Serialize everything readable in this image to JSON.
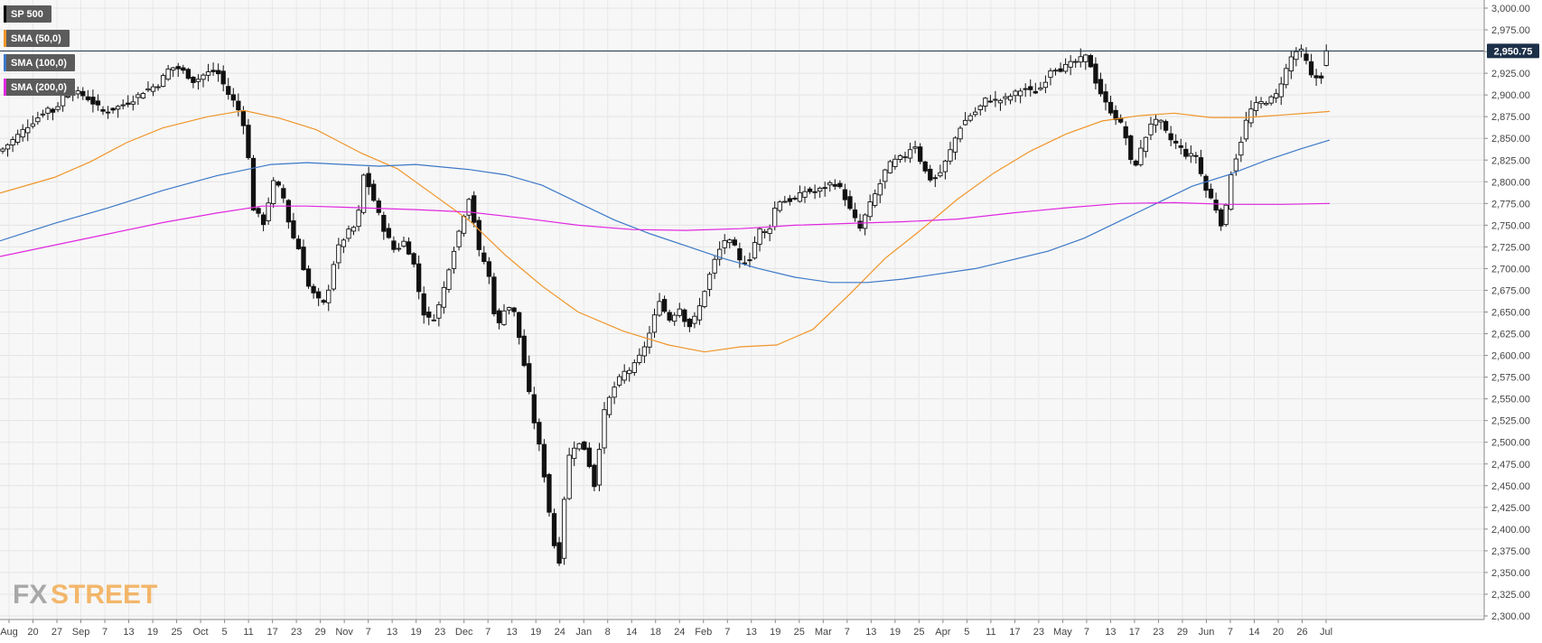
{
  "legend": [
    {
      "label": "SP 500",
      "color": "#000000"
    },
    {
      "label": "SMA (50,0)",
      "color": "#f0952a"
    },
    {
      "label": "SMA (100,0)",
      "color": "#3c78c8"
    },
    {
      "label": "SMA (200,0)",
      "color": "#e028e0"
    }
  ],
  "watermark": {
    "part1": "FX",
    "part2": "STREET"
  },
  "chart_data": {
    "type": "candlestick",
    "title": "",
    "ylim": [
      2300,
      3000
    ],
    "y_ticks": [
      "2,300.00",
      "2,325.00",
      "2,350.00",
      "2,375.00",
      "2,400.00",
      "2,425.00",
      "2,450.00",
      "2,475.00",
      "2,500.00",
      "2,525.00",
      "2,550.00",
      "2,575.00",
      "2,600.00",
      "2,625.00",
      "2,650.00",
      "2,675.00",
      "2,700.00",
      "2,725.00",
      "2,750.00",
      "2,775.00",
      "2,800.00",
      "2,825.00",
      "2,850.00",
      "2,875.00",
      "2,900.00",
      "2,925.00",
      "2,950.00",
      "2,975.00",
      "3,000.00"
    ],
    "x_ticks": [
      "Aug",
      "20",
      "27",
      "Sep",
      "7",
      "13",
      "19",
      "25",
      "Oct",
      "5",
      "11",
      "17",
      "23",
      "29",
      "Nov",
      "7",
      "13",
      "19",
      "23",
      "Dec",
      "7",
      "13",
      "19",
      "24",
      "Jan",
      "8",
      "14",
      "18",
      "24",
      "Feb",
      "7",
      "13",
      "19",
      "25",
      "Mar",
      "7",
      "13",
      "19",
      "25",
      "Apr",
      "5",
      "11",
      "17",
      "23",
      "May",
      "7",
      "13",
      "17",
      "23",
      "29",
      "Jun",
      "7",
      "14",
      "20",
      "26",
      "Jul"
    ],
    "last_price": {
      "label": "2,950.75",
      "value": 2950.75
    },
    "price_path": [
      [
        0,
        2835
      ],
      [
        14,
        2848
      ],
      [
        28,
        2862
      ],
      [
        40,
        2872
      ],
      [
        52,
        2885
      ],
      [
        60,
        2880
      ],
      [
        70,
        2900
      ],
      [
        84,
        2903
      ],
      [
        95,
        2898
      ],
      [
        115,
        2880
      ],
      [
        130,
        2886
      ],
      [
        145,
        2893
      ],
      [
        160,
        2905
      ],
      [
        175,
        2912
      ],
      [
        188,
        2932
      ],
      [
        200,
        2930
      ],
      [
        215,
        2915
      ],
      [
        228,
        2925
      ],
      [
        240,
        2928
      ],
      [
        252,
        2902
      ],
      [
        262,
        2888
      ],
      [
        272,
        2860
      ],
      [
        280,
        2770
      ],
      [
        292,
        2752
      ],
      [
        302,
        2800
      ],
      [
        312,
        2790
      ],
      [
        322,
        2742
      ],
      [
        332,
        2720
      ],
      [
        340,
        2682
      ],
      [
        350,
        2666
      ],
      [
        360,
        2658
      ],
      [
        372,
        2720
      ],
      [
        385,
        2742
      ],
      [
        395,
        2750
      ],
      [
        403,
        2810
      ],
      [
        414,
        2778
      ],
      [
        425,
        2745
      ],
      [
        437,
        2720
      ],
      [
        448,
        2732
      ],
      [
        458,
        2705
      ],
      [
        468,
        2650
      ],
      [
        478,
        2638
      ],
      [
        488,
        2663
      ],
      [
        498,
        2706
      ],
      [
        510,
        2750
      ],
      [
        520,
        2785
      ],
      [
        530,
        2720
      ],
      [
        540,
        2700
      ],
      [
        550,
        2628
      ],
      [
        560,
        2660
      ],
      [
        570,
        2648
      ],
      [
        580,
        2590
      ],
      [
        590,
        2530
      ],
      [
        600,
        2480
      ],
      [
        608,
        2420
      ],
      [
        618,
        2350
      ],
      [
        628,
        2480
      ],
      [
        638,
        2500
      ],
      [
        648,
        2492
      ],
      [
        658,
        2450
      ],
      [
        668,
        2532
      ],
      [
        678,
        2560
      ],
      [
        690,
        2580
      ],
      [
        700,
        2585
      ],
      [
        710,
        2602
      ],
      [
        720,
        2628
      ],
      [
        730,
        2665
      ],
      [
        740,
        2640
      ],
      [
        752,
        2655
      ],
      [
        762,
        2632
      ],
      [
        772,
        2648
      ],
      [
        782,
        2682
      ],
      [
        792,
        2712
      ],
      [
        802,
        2733
      ],
      [
        812,
        2728
      ],
      [
        820,
        2705
      ],
      [
        830,
        2712
      ],
      [
        840,
        2745
      ],
      [
        850,
        2740
      ],
      [
        860,
        2778
      ],
      [
        870,
        2778
      ],
      [
        880,
        2780
      ],
      [
        892,
        2790
      ],
      [
        902,
        2788
      ],
      [
        912,
        2793
      ],
      [
        922,
        2800
      ],
      [
        932,
        2790
      ],
      [
        942,
        2765
      ],
      [
        952,
        2746
      ],
      [
        962,
        2772
      ],
      [
        972,
        2792
      ],
      [
        982,
        2818
      ],
      [
        992,
        2825
      ],
      [
        1002,
        2830
      ],
      [
        1012,
        2845
      ],
      [
        1022,
        2815
      ],
      [
        1032,
        2800
      ],
      [
        1042,
        2812
      ],
      [
        1052,
        2836
      ],
      [
        1062,
        2862
      ],
      [
        1072,
        2875
      ],
      [
        1082,
        2882
      ],
      [
        1092,
        2896
      ],
      [
        1104,
        2893
      ],
      [
        1114,
        2896
      ],
      [
        1124,
        2902
      ],
      [
        1134,
        2908
      ],
      [
        1144,
        2902
      ],
      [
        1154,
        2910
      ],
      [
        1164,
        2932
      ],
      [
        1174,
        2930
      ],
      [
        1184,
        2935
      ],
      [
        1194,
        2940
      ],
      [
        1204,
        2945
      ],
      [
        1214,
        2912
      ],
      [
        1224,
        2890
      ],
      [
        1234,
        2875
      ],
      [
        1244,
        2862
      ],
      [
        1254,
        2812
      ],
      [
        1264,
        2840
      ],
      [
        1274,
        2868
      ],
      [
        1284,
        2870
      ],
      [
        1294,
        2850
      ],
      [
        1304,
        2842
      ],
      [
        1314,
        2830
      ],
      [
        1324,
        2830
      ],
      [
        1334,
        2792
      ],
      [
        1344,
        2775
      ],
      [
        1354,
        2745
      ],
      [
        1362,
        2808
      ],
      [
        1372,
        2840
      ],
      [
        1382,
        2880
      ],
      [
        1392,
        2890
      ],
      [
        1402,
        2893
      ],
      [
        1412,
        2898
      ],
      [
        1422,
        2925
      ],
      [
        1432,
        2950
      ],
      [
        1442,
        2950
      ],
      [
        1452,
        2920
      ],
      [
        1462,
        2920
      ],
      [
        1472,
        2950.75
      ]
    ],
    "series": [
      {
        "name": "SMA (50,0)",
        "color": "#f0952a",
        "points": [
          [
            0,
            2787
          ],
          [
            60,
            2805
          ],
          [
            100,
            2823
          ],
          [
            140,
            2845
          ],
          [
            180,
            2862
          ],
          [
            230,
            2875
          ],
          [
            270,
            2882
          ],
          [
            310,
            2873
          ],
          [
            350,
            2860
          ],
          [
            400,
            2833
          ],
          [
            440,
            2815
          ],
          [
            480,
            2785
          ],
          [
            520,
            2755
          ],
          [
            560,
            2715
          ],
          [
            600,
            2680
          ],
          [
            640,
            2650
          ],
          [
            690,
            2628
          ],
          [
            740,
            2612
          ],
          [
            780,
            2604
          ],
          [
            820,
            2610
          ],
          [
            860,
            2612
          ],
          [
            900,
            2630
          ],
          [
            940,
            2670
          ],
          [
            980,
            2712
          ],
          [
            1020,
            2745
          ],
          [
            1060,
            2780
          ],
          [
            1100,
            2810
          ],
          [
            1140,
            2835
          ],
          [
            1180,
            2855
          ],
          [
            1220,
            2870
          ],
          [
            1260,
            2876
          ],
          [
            1300,
            2879
          ],
          [
            1340,
            2874
          ],
          [
            1380,
            2874
          ],
          [
            1420,
            2877
          ],
          [
            1472,
            2881
          ]
        ]
      },
      {
        "name": "SMA (100,0)",
        "color": "#3c78c8",
        "points": [
          [
            0,
            2732
          ],
          [
            60,
            2752
          ],
          [
            120,
            2770
          ],
          [
            180,
            2790
          ],
          [
            240,
            2807
          ],
          [
            300,
            2820
          ],
          [
            340,
            2822
          ],
          [
            380,
            2820
          ],
          [
            420,
            2818
          ],
          [
            460,
            2820
          ],
          [
            520,
            2814
          ],
          [
            560,
            2808
          ],
          [
            600,
            2796
          ],
          [
            640,
            2776
          ],
          [
            680,
            2756
          ],
          [
            720,
            2740
          ],
          [
            760,
            2726
          ],
          [
            800,
            2712
          ],
          [
            840,
            2700
          ],
          [
            880,
            2690
          ],
          [
            920,
            2684
          ],
          [
            960,
            2684
          ],
          [
            1000,
            2688
          ],
          [
            1040,
            2694
          ],
          [
            1080,
            2700
          ],
          [
            1120,
            2710
          ],
          [
            1160,
            2720
          ],
          [
            1200,
            2735
          ],
          [
            1240,
            2755
          ],
          [
            1280,
            2775
          ],
          [
            1320,
            2795
          ],
          [
            1360,
            2808
          ],
          [
            1400,
            2824
          ],
          [
            1440,
            2838
          ],
          [
            1472,
            2848
          ]
        ]
      },
      {
        "name": "SMA (200,0)",
        "color": "#e028e0",
        "points": [
          [
            0,
            2714
          ],
          [
            60,
            2727
          ],
          [
            120,
            2740
          ],
          [
            180,
            2753
          ],
          [
            240,
            2764
          ],
          [
            290,
            2772
          ],
          [
            340,
            2772
          ],
          [
            400,
            2770
          ],
          [
            460,
            2768
          ],
          [
            520,
            2765
          ],
          [
            580,
            2758
          ],
          [
            640,
            2750
          ],
          [
            700,
            2745
          ],
          [
            760,
            2744
          ],
          [
            820,
            2746
          ],
          [
            880,
            2750
          ],
          [
            940,
            2752
          ],
          [
            1000,
            2754
          ],
          [
            1060,
            2757
          ],
          [
            1120,
            2764
          ],
          [
            1180,
            2770
          ],
          [
            1240,
            2775
          ],
          [
            1300,
            2776
          ],
          [
            1360,
            2774
          ],
          [
            1420,
            2774
          ],
          [
            1472,
            2775
          ]
        ]
      }
    ]
  }
}
